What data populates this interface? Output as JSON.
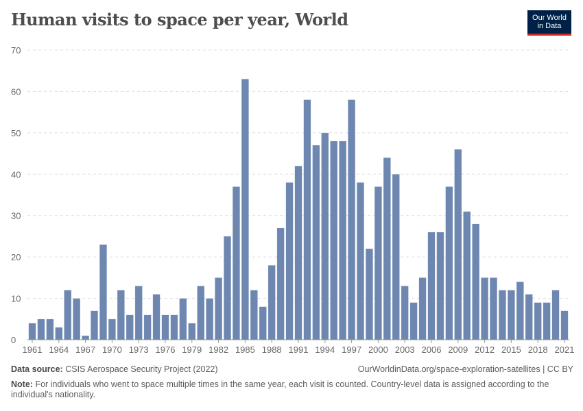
{
  "chart_data": {
    "type": "bar",
    "title": "Human visits to space per year, World",
    "xlabel": "",
    "ylabel": "",
    "ylim": [
      0,
      70
    ],
    "yticks": [
      0,
      10,
      20,
      30,
      40,
      50,
      60,
      70
    ],
    "xticks": [
      "1961",
      "1964",
      "1967",
      "1970",
      "1973",
      "1976",
      "1979",
      "1982",
      "1985",
      "1988",
      "1991",
      "1994",
      "1997",
      "2000",
      "2003",
      "2006",
      "2009",
      "2012",
      "2015",
      "2018",
      "2021"
    ],
    "grid": true,
    "bar_color": "#6d87b0",
    "categories": [
      1961,
      1962,
      1963,
      1964,
      1965,
      1966,
      1967,
      1968,
      1969,
      1970,
      1971,
      1972,
      1973,
      1974,
      1975,
      1976,
      1977,
      1978,
      1979,
      1980,
      1981,
      1982,
      1983,
      1984,
      1985,
      1986,
      1987,
      1988,
      1989,
      1990,
      1991,
      1992,
      1993,
      1994,
      1995,
      1996,
      1997,
      1998,
      1999,
      2000,
      2001,
      2002,
      2003,
      2004,
      2005,
      2006,
      2007,
      2008,
      2009,
      2010,
      2011,
      2012,
      2013,
      2014,
      2015,
      2016,
      2017,
      2018,
      2019,
      2020,
      2021
    ],
    "values": [
      4,
      5,
      5,
      3,
      12,
      10,
      1,
      7,
      23,
      5,
      12,
      6,
      13,
      6,
      11,
      6,
      6,
      10,
      4,
      13,
      10,
      15,
      25,
      37,
      63,
      12,
      8,
      18,
      27,
      38,
      42,
      58,
      47,
      50,
      48,
      48,
      58,
      38,
      22,
      37,
      44,
      40,
      13,
      9,
      15,
      26,
      26,
      37,
      46,
      31,
      28,
      15,
      15,
      12,
      12,
      14,
      11,
      9,
      9,
      12,
      7
    ]
  },
  "logo": {
    "line1": "Our World",
    "line2": "in Data"
  },
  "footer": {
    "source_label": "Data source:",
    "source": "CSIS Aerospace Security Project (2022)",
    "url": "OurWorldinData.org/space-exploration-satellites | CC BY",
    "note_label": "Note:",
    "note": "For individuals who went to space multiple times in the same year, each visit is counted. Country-level data is assigned according to the individual's nationality."
  }
}
